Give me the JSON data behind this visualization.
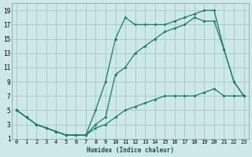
{
  "xlabel": "Humidex (Indice chaleur)",
  "bg_color": "#cce8e8",
  "grid_color": "#aacccc",
  "line_color": "#1a7a6a",
  "xlim": [
    -0.5,
    23.5
  ],
  "ylim": [
    1,
    20
  ],
  "xticks": [
    0,
    1,
    2,
    3,
    4,
    5,
    6,
    7,
    8,
    9,
    10,
    11,
    12,
    13,
    14,
    15,
    16,
    17,
    18,
    19,
    20,
    21,
    22,
    23
  ],
  "yticks": [
    1,
    3,
    5,
    7,
    9,
    11,
    13,
    15,
    17,
    19
  ],
  "line1_x": [
    0,
    1,
    2,
    3,
    4,
    5,
    6,
    7,
    8,
    9,
    10,
    11,
    12,
    13,
    14,
    15,
    16,
    17,
    18,
    19,
    20,
    21,
    22,
    23
  ],
  "line1_y": [
    5,
    4,
    3,
    2.5,
    2,
    1.5,
    1.5,
    1.5,
    5,
    9,
    15,
    18,
    17,
    17,
    17,
    17,
    17.5,
    18,
    18.5,
    19,
    19,
    13.5,
    9,
    7
  ],
  "line2_x": [
    0,
    1,
    2,
    3,
    4,
    5,
    6,
    7,
    8,
    9,
    10,
    11,
    12,
    13,
    14,
    15,
    16,
    17,
    18,
    19,
    20,
    21,
    22,
    23
  ],
  "line2_y": [
    5,
    4,
    3,
    2.5,
    2,
    1.5,
    1.5,
    1.5,
    3,
    4,
    10,
    11,
    13,
    14,
    15,
    16,
    16.5,
    17,
    18,
    17.5,
    17.5,
    13.5,
    9,
    7
  ],
  "line3_x": [
    0,
    1,
    2,
    3,
    4,
    5,
    6,
    7,
    8,
    9,
    10,
    11,
    12,
    13,
    14,
    15,
    16,
    17,
    18,
    19,
    20,
    21,
    22,
    23
  ],
  "line3_y": [
    5,
    4,
    3,
    2.5,
    2,
    1.5,
    1.5,
    1.5,
    2.5,
    3,
    4,
    5,
    5.5,
    6,
    6.5,
    7,
    7,
    7,
    7,
    7.5,
    8,
    7,
    7,
    7
  ]
}
